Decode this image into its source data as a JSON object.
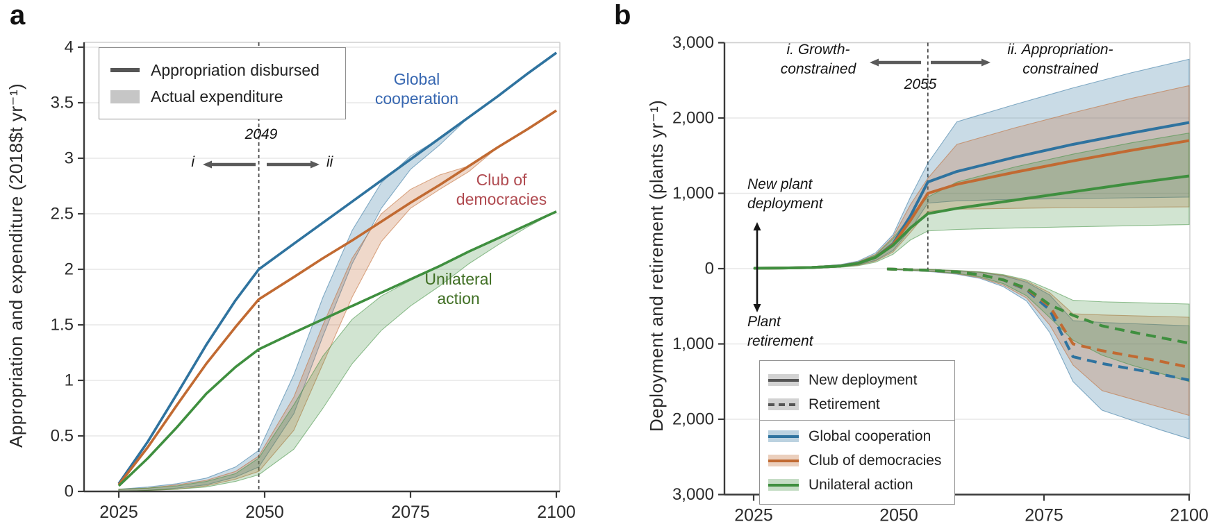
{
  "panels": {
    "a": {
      "letter": "a",
      "y_axis_label": "Appropriation and expenditure (2018$t yr⁻¹)",
      "legend": {
        "appropriation": "Appropriation disbursed",
        "expenditure": "Actual expenditure"
      },
      "annotations": {
        "vline_year": "2049",
        "phase_left": "i",
        "phase_right": "ii"
      },
      "series_labels": {
        "global": "Global\ncooperation",
        "club": "Club of\ndemocracies",
        "unilateral": "Unilateral\naction"
      }
    },
    "b": {
      "letter": "b",
      "y_axis_label": "Deployment and retirement (plants yr⁻¹)",
      "legend": {
        "deployment": "New deployment",
        "retirement": "Retirement",
        "global": "Global cooperation",
        "club": "Club of democracies",
        "unilateral": "Unilateral action"
      },
      "annotations": {
        "vline_year": "2055",
        "phase_left": "i. Growth-\nconstrained",
        "phase_right": "ii. Appropriation-\nconstrained",
        "deployment_note": "New plant\ndeployment",
        "retirement_note": "Plant\nretirement"
      }
    }
  },
  "colors": {
    "global": "#2f739f",
    "club": "#c16a32",
    "unilateral": "#3f8f3f",
    "global_label": "#3767b1",
    "club_label": "#b04a50",
    "unilateral_label": "#3f6e23",
    "neutral_line": "#555555",
    "neutral_fill": "#c6c6c6",
    "spine_dark": "#3a3a3a",
    "spine_light": "#cfcfcf",
    "grid": "#e7e7e7",
    "vline": "#4a4a4a",
    "arrow": "#5a5a5a",
    "tick_text": "#2b2b2b"
  },
  "chart_data": [
    {
      "panel": "a",
      "type": "line",
      "ylabel": "Appropriation and expenditure (2018$t yr⁻¹)",
      "xlim": [
        2020,
        2101
      ],
      "ylim": [
        0,
        4.05
      ],
      "grid": "horizontal",
      "vline_year": 2049,
      "x_ticks": [
        {
          "v": 2025,
          "label": "2025"
        },
        {
          "v": 2050,
          "label": "2050"
        },
        {
          "v": 2075,
          "label": "2075"
        },
        {
          "v": 2100,
          "label": "2100"
        }
      ],
      "y_ticks": [
        {
          "v": 0,
          "label": "0"
        },
        {
          "v": 0.5,
          "label": "0.5"
        },
        {
          "v": 1,
          "label": "1"
        },
        {
          "v": 1.5,
          "label": "1.5"
        },
        {
          "v": 2,
          "label": "2"
        },
        {
          "v": 2.5,
          "label": "2.5"
        },
        {
          "v": 3,
          "label": "3"
        },
        {
          "v": 3.5,
          "label": "3.5"
        },
        {
          "v": 4,
          "label": "4"
        }
      ],
      "x": [
        2025,
        2030,
        2035,
        2040,
        2045,
        2049,
        2055,
        2060,
        2065,
        2070,
        2075,
        2080,
        2085,
        2090,
        2095,
        2100
      ],
      "appropriation_lines": {
        "global": [
          0.07,
          0.45,
          0.88,
          1.32,
          1.72,
          2.0,
          2.23,
          2.42,
          2.61,
          2.8,
          2.99,
          3.18,
          3.37,
          3.56,
          3.76,
          3.95
        ],
        "club": [
          0.06,
          0.4,
          0.78,
          1.15,
          1.48,
          1.73,
          1.93,
          2.1,
          2.26,
          2.43,
          2.6,
          2.76,
          2.93,
          3.1,
          3.26,
          3.43
        ],
        "unilateral": [
          0.05,
          0.3,
          0.58,
          0.88,
          1.12,
          1.28,
          1.43,
          1.55,
          1.67,
          1.79,
          1.91,
          2.03,
          2.16,
          2.28,
          2.4,
          2.52
        ]
      },
      "expenditure_bands": {
        "global": {
          "high": [
            0.02,
            0.04,
            0.07,
            0.12,
            0.22,
            0.37,
            1.05,
            1.75,
            2.35,
            2.78,
            3.02,
            3.18,
            3.37,
            3.56,
            3.76,
            3.95
          ],
          "low": [
            0.0,
            0.01,
            0.03,
            0.06,
            0.13,
            0.22,
            0.7,
            1.4,
            2.05,
            2.55,
            2.9,
            3.12,
            3.37,
            3.56,
            3.76,
            3.95
          ]
        },
        "club": {
          "high": [
            0.02,
            0.03,
            0.06,
            0.1,
            0.18,
            0.32,
            0.85,
            1.5,
            2.1,
            2.5,
            2.72,
            2.85,
            2.93,
            3.1,
            3.26,
            3.43
          ],
          "low": [
            0.0,
            0.01,
            0.02,
            0.05,
            0.11,
            0.18,
            0.55,
            1.15,
            1.75,
            2.25,
            2.55,
            2.72,
            2.88,
            3.1,
            3.26,
            3.43
          ]
        },
        "unilateral": {
          "high": [
            0.02,
            0.03,
            0.05,
            0.09,
            0.16,
            0.3,
            0.78,
            1.22,
            1.55,
            1.76,
            1.9,
            2.03,
            2.16,
            2.28,
            2.4,
            2.52
          ],
          "low": [
            0.0,
            0.01,
            0.02,
            0.04,
            0.09,
            0.15,
            0.38,
            0.75,
            1.15,
            1.45,
            1.67,
            1.85,
            2.05,
            2.22,
            2.38,
            2.52
          ]
        }
      }
    },
    {
      "panel": "b",
      "type": "line",
      "ylabel": "Deployment and retirement (plants yr⁻¹)",
      "xlim": [
        2020,
        2101
      ],
      "ylim": [
        -3000,
        3000
      ],
      "grid": "horizontal",
      "vline_year": 2055,
      "x_ticks": [
        {
          "v": 2025,
          "label": "2025"
        },
        {
          "v": 2050,
          "label": "2050"
        },
        {
          "v": 2075,
          "label": "2075"
        },
        {
          "v": 2100,
          "label": "2100"
        }
      ],
      "y_ticks": [
        {
          "v": 3000,
          "label": "3,000"
        },
        {
          "v": 2000,
          "label": "2,000"
        },
        {
          "v": 1000,
          "label": "1,000"
        },
        {
          "v": 0,
          "label": "0"
        },
        {
          "v": -1000,
          "label": "1,000"
        },
        {
          "v": -2000,
          "label": "2,000"
        },
        {
          "v": -3000,
          "label": "3,000"
        }
      ],
      "x_deployment": [
        2025,
        2030,
        2035,
        2040,
        2043,
        2046,
        2049,
        2052,
        2055,
        2060,
        2070,
        2080,
        2090,
        2100
      ],
      "deployment_lines": {
        "global": [
          5,
          8,
          15,
          35,
          70,
          150,
          330,
          700,
          1150,
          1290,
          1480,
          1650,
          1800,
          1940
        ],
        "club": [
          5,
          8,
          15,
          35,
          70,
          150,
          320,
          640,
          1000,
          1120,
          1280,
          1430,
          1570,
          1700
        ],
        "unilateral": [
          5,
          8,
          15,
          35,
          70,
          150,
          310,
          540,
          730,
          800,
          910,
          1020,
          1130,
          1230
        ]
      },
      "deployment_bands": {
        "global": {
          "high": [
            8,
            12,
            25,
            55,
            100,
            210,
            450,
            950,
            1400,
            1950,
            2180,
            2400,
            2600,
            2780
          ],
          "low": [
            3,
            5,
            10,
            25,
            50,
            110,
            240,
            520,
            870,
            900,
            920,
            930,
            940,
            950
          ]
        },
        "club": {
          "high": [
            7,
            11,
            22,
            50,
            90,
            190,
            420,
            850,
            1200,
            1650,
            1870,
            2070,
            2260,
            2430
          ],
          "low": [
            3,
            5,
            9,
            22,
            45,
            100,
            220,
            480,
            760,
            790,
            800,
            810,
            815,
            820
          ]
        },
        "unilateral": {
          "high": [
            6,
            10,
            20,
            45,
            85,
            180,
            400,
            700,
            950,
            1150,
            1350,
            1520,
            1670,
            1800
          ],
          "low": [
            2,
            4,
            8,
            18,
            38,
            85,
            190,
            380,
            500,
            520,
            540,
            555,
            570,
            585
          ]
        }
      },
      "x_retirement": [
        2048,
        2052,
        2056,
        2060,
        2064,
        2068,
        2072,
        2076,
        2080,
        2085,
        2090,
        2095,
        2100
      ],
      "retirement_lines": {
        "global": [
          -5,
          -15,
          -25,
          -45,
          -80,
          -150,
          -280,
          -550,
          -1170,
          -1260,
          -1330,
          -1400,
          -1480
        ],
        "club": [
          -5,
          -15,
          -25,
          -45,
          -80,
          -150,
          -270,
          -500,
          -1000,
          -1090,
          -1160,
          -1230,
          -1310
        ],
        "unilateral": [
          -5,
          -15,
          -25,
          -45,
          -80,
          -150,
          -260,
          -480,
          -620,
          -760,
          -840,
          -915,
          -990
        ]
      },
      "retirement_bands": {
        "global": {
          "high": [
            -2,
            -8,
            -15,
            -28,
            -50,
            -95,
            -180,
            -350,
            -690,
            -715,
            -730,
            -745,
            -760
          ],
          "low": [
            -9,
            -25,
            -45,
            -75,
            -130,
            -240,
            -430,
            -850,
            -1500,
            -1880,
            -2010,
            -2140,
            -2260
          ]
        },
        "club": {
          "high": [
            -2,
            -8,
            -14,
            -26,
            -46,
            -88,
            -165,
            -320,
            -600,
            -615,
            -625,
            -635,
            -645
          ],
          "low": [
            -8,
            -22,
            -40,
            -68,
            -120,
            -220,
            -390,
            -750,
            -1280,
            -1620,
            -1730,
            -1840,
            -1950
          ]
        },
        "unilateral": {
          "high": [
            -2,
            -7,
            -13,
            -24,
            -42,
            -80,
            -150,
            -280,
            -420,
            -440,
            -450,
            -460,
            -470
          ],
          "low": [
            -8,
            -20,
            -36,
            -62,
            -110,
            -200,
            -360,
            -650,
            -950,
            -1150,
            -1280,
            -1390,
            -1500
          ]
        }
      }
    }
  ]
}
